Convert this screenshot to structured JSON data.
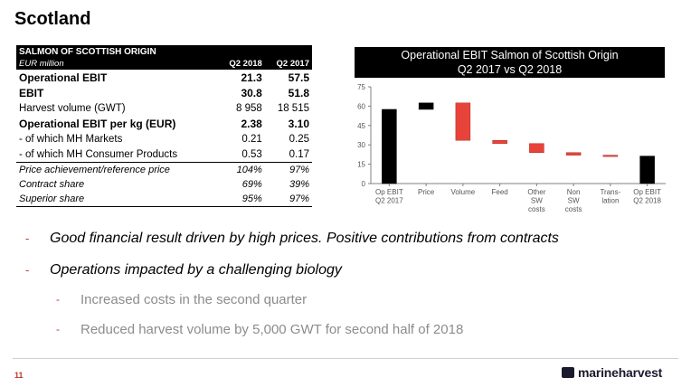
{
  "page": {
    "title": "Scotland",
    "page_number": "11",
    "logo_text": "marineharvest"
  },
  "table": {
    "title": "SALMON OF SCOTTISH ORIGIN",
    "unit": "EUR million",
    "col1": "Q2 2018",
    "col2": "Q2 2017",
    "rows": [
      {
        "label": "Operational EBIT",
        "v1": "21.3",
        "v2": "57.5"
      },
      {
        "label": "EBIT",
        "v1": "30.8",
        "v2": "51.8"
      },
      {
        "label": "Harvest volume (GWT)",
        "v1": "8 958",
        "v2": "18 515"
      },
      {
        "label": "Operational EBIT per kg (EUR)",
        "v1": "2.38",
        "v2": "3.10"
      },
      {
        "label": " - of which MH Markets",
        "v1": "0.21",
        "v2": "0.25"
      },
      {
        "label": " - of which MH Consumer Products",
        "v1": "0.53",
        "v2": "0.17"
      },
      {
        "label": "Price achievement/reference price",
        "v1": "104%",
        "v2": "97%"
      },
      {
        "label": "Contract share",
        "v1": "69%",
        "v2": "39%"
      },
      {
        "label": "Superior share",
        "v1": "95%",
        "v2": "97%"
      }
    ]
  },
  "chart_data": {
    "type": "bar",
    "subtype": "waterfall",
    "title": "Operational EBIT Salmon of Scottish Origin",
    "subtitle": "Q2 2017 vs Q2 2018",
    "categories": [
      [
        "Op EBIT",
        "Q2 2017"
      ],
      [
        "Price"
      ],
      [
        "Volume"
      ],
      [
        "Feed"
      ],
      [
        "Other",
        "SW",
        "costs"
      ],
      [
        "Non",
        "SW",
        "costs"
      ],
      [
        "Trans-",
        "lation"
      ],
      [
        "Op EBIT",
        "Q2 2018"
      ]
    ],
    "bars": [
      {
        "kind": "total",
        "start": 0,
        "end": 57.5
      },
      {
        "kind": "increase",
        "start": 57.5,
        "end": 62.5
      },
      {
        "kind": "decrease",
        "start": 62.5,
        "end": 33.5
      },
      {
        "kind": "decrease",
        "start": 33.5,
        "end": 31.0
      },
      {
        "kind": "decrease",
        "start": 31.0,
        "end": 24.0
      },
      {
        "kind": "decrease",
        "start": 24.0,
        "end": 22.0
      },
      {
        "kind": "decrease",
        "start": 22.0,
        "end": 21.3
      },
      {
        "kind": "total",
        "start": 0,
        "end": 21.3
      }
    ],
    "yticks": [
      0,
      15,
      30,
      45,
      60,
      75
    ],
    "ylim": [
      0,
      75
    ],
    "colors": {
      "total": "#000000",
      "increase": "#000000",
      "decrease": "#e8433a"
    }
  },
  "bullets": [
    "Good financial result driven by high prices. Positive contributions from contracts",
    "Operations impacted by a challenging biology"
  ],
  "sub_bullets": [
    "Increased costs in the second quarter",
    "Reduced harvest volume by 5,000 GWT for second half of 2018"
  ],
  "dash": "-"
}
